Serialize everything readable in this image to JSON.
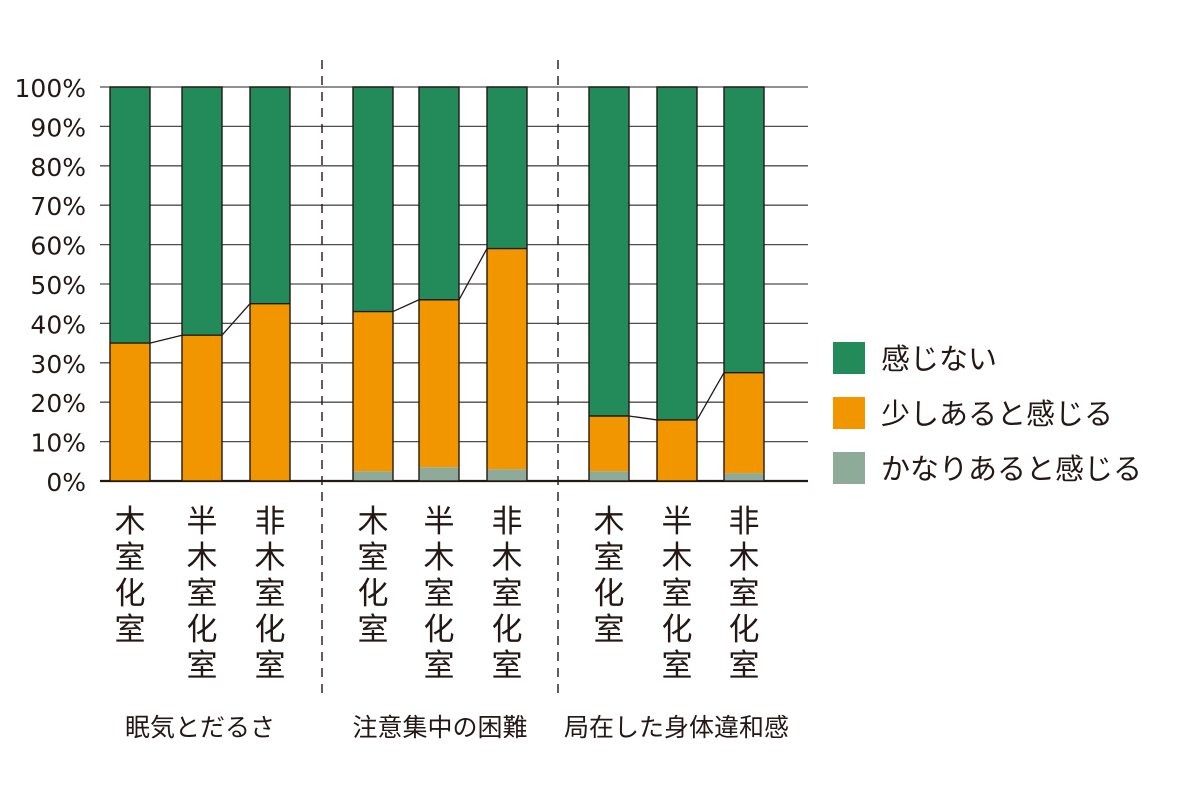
{
  "chart_data": {
    "type": "bar",
    "stacked": true,
    "percent": true,
    "ylim": [
      0,
      100
    ],
    "y_ticks": [
      "0%",
      "10%",
      "20%",
      "30%",
      "40%",
      "50%",
      "60%",
      "70%",
      "80%",
      "90%",
      "100%"
    ],
    "grid": true,
    "legend_position": "right",
    "groups": [
      {
        "label": "眠気とだるさ",
        "bars": [
          {
            "label": "木室化室",
            "values": [
              65,
              35,
              0
            ]
          },
          {
            "label": "半木室化室",
            "values": [
              63,
              37,
              0
            ]
          },
          {
            "label": "非木室化室",
            "values": [
              55,
              45,
              0
            ]
          }
        ]
      },
      {
        "label": "注意集中の困難",
        "bars": [
          {
            "label": "木室化室",
            "values": [
              57,
              40.5,
              2.5
            ]
          },
          {
            "label": "半木室化室",
            "values": [
              54,
              42.5,
              3.5
            ]
          },
          {
            "label": "非木室化室",
            "values": [
              41,
              56,
              3
            ]
          }
        ]
      },
      {
        "label": "局在した身体違和感",
        "bars": [
          {
            "label": "木室化室",
            "values": [
              83.5,
              14,
              2.5
            ]
          },
          {
            "label": "半木室化室",
            "values": [
              84.5,
              15.5,
              0
            ]
          },
          {
            "label": "非木室化室",
            "values": [
              72.5,
              25.5,
              2
            ]
          }
        ]
      }
    ],
    "series": [
      {
        "name": "感じない",
        "color": "#238b59"
      },
      {
        "name": "少しあると感じる",
        "color": "#f29600"
      },
      {
        "name": "かなりあると感じる",
        "color": "#8eaa98"
      }
    ]
  }
}
